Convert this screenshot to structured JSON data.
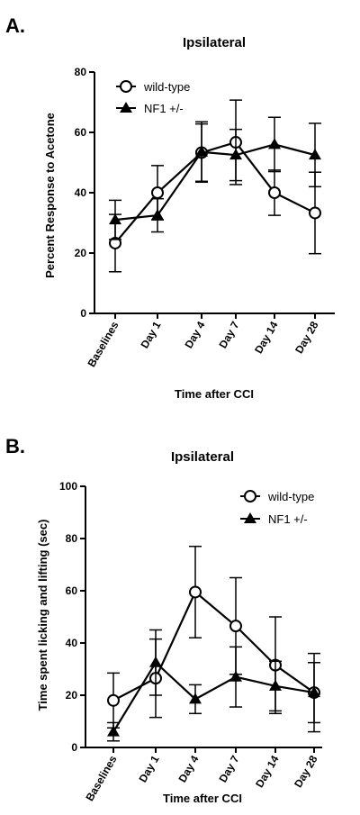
{
  "chart_data": [
    {
      "panel": "A.",
      "type": "line",
      "title": "Ipsilateral",
      "xlabel": "Time after CCI",
      "ylabel": "Percent Response to Acetone",
      "categories": [
        "Baselines",
        "Day 1",
        "Day 4",
        "Day 7",
        "Day 14",
        "Day 28"
      ],
      "ylim": [
        0,
        80
      ],
      "yticks": [
        0,
        20,
        40,
        60,
        80
      ],
      "legend_position": "top-left",
      "series": [
        {
          "name": "wild-type",
          "marker": "open-circle",
          "values": [
            23.3,
            40,
            53.3,
            56.7,
            40,
            33.3
          ],
          "errors": [
            9.5,
            9.0,
            9.5,
            14.0,
            7.5,
            13.5
          ]
        },
        {
          "name": "NF1 +/-",
          "marker": "filled-triangle",
          "values": [
            31,
            32.5,
            53.5,
            52.5,
            56,
            52.5
          ],
          "errors": [
            6.5,
            5.5,
            10.0,
            8.5,
            9.0,
            10.5
          ]
        }
      ]
    },
    {
      "panel": "B.",
      "type": "line",
      "title": "Ipsilateral",
      "xlabel": "Time after CCI",
      "ylabel": "Time spent licking and lifting (sec)",
      "categories": [
        "Baselines",
        "Day 1",
        "Day 4",
        "Day 7",
        "Day 14",
        "Day 28"
      ],
      "ylim": [
        0,
        100
      ],
      "yticks": [
        0,
        20,
        40,
        60,
        80,
        100
      ],
      "legend_position": "top-right",
      "series": [
        {
          "name": "wild-type",
          "marker": "open-circle",
          "values": [
            18,
            26.5,
            59.5,
            46.5,
            31.5,
            21
          ],
          "errors": [
            10.5,
            15.0,
            17.5,
            18.5,
            18.5,
            15.0
          ]
        },
        {
          "name": "NF1 +/-",
          "marker": "filled-triangle",
          "values": [
            6,
            32.5,
            18.5,
            27,
            23.5,
            21
          ],
          "errors": [
            3.5,
            12.5,
            5.5,
            11.5,
            9.5,
            11.5
          ]
        }
      ]
    }
  ]
}
